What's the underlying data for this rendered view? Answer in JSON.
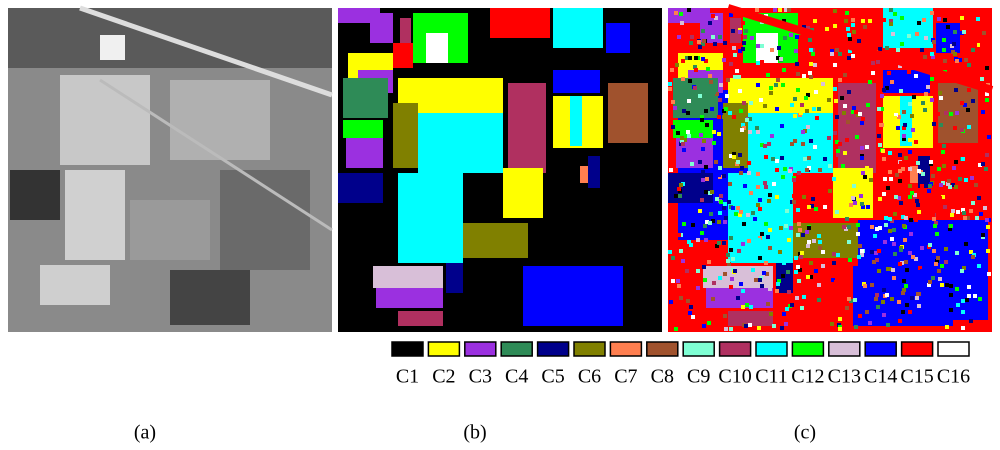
{
  "panels": [
    {
      "caption": "(a)"
    },
    {
      "caption": "(b)"
    },
    {
      "caption": "(c)"
    }
  ],
  "legend": [
    {
      "label": "C1",
      "color": "#000000"
    },
    {
      "label": "C2",
      "color": "#ffff00"
    },
    {
      "label": "C3",
      "color": "#9b30e0"
    },
    {
      "label": "C4",
      "color": "#2e8b57"
    },
    {
      "label": "C5",
      "color": "#00008b"
    },
    {
      "label": "C6",
      "color": "#808000"
    },
    {
      "label": "C7",
      "color": "#ff7f50"
    },
    {
      "label": "C8",
      "color": "#a0522d"
    },
    {
      "label": "C9",
      "color": "#7fffd4"
    },
    {
      "label": "C10",
      "color": "#b03060"
    },
    {
      "label": "C11",
      "color": "#00ffff"
    },
    {
      "label": "C12",
      "color": "#00ff00"
    },
    {
      "label": "C13",
      "color": "#d8bfd8"
    },
    {
      "label": "C14",
      "color": "#0000ff"
    },
    {
      "label": "C15",
      "color": "#ff0000"
    },
    {
      "label": "C16",
      "color": "#ffffff"
    }
  ]
}
